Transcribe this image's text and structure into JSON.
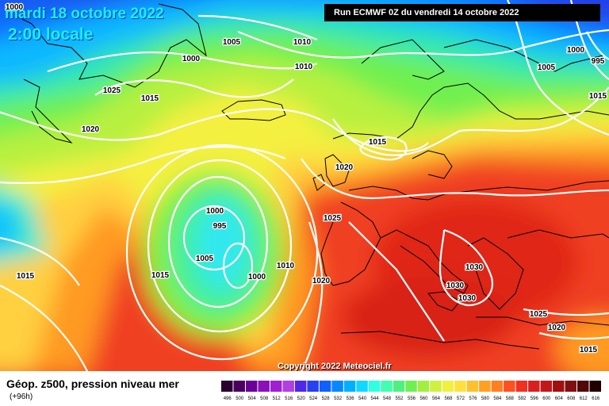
{
  "header": {
    "date_line": "mardi 18 octobre 2022",
    "time_line": "2:00 locale",
    "run_info": "Run ECMWF 0Z du vendredi 14 octobre 2022"
  },
  "footer": {
    "copyright": "Copyright 2022 Meteociel.fr",
    "legend_title": "Géop. z500, pression niveau mer",
    "legend_sub": "(+96h)"
  },
  "scale": {
    "labels": [
      "496",
      "500",
      "504",
      "508",
      "512",
      "516",
      "520",
      "524",
      "528",
      "532",
      "536",
      "540",
      "544",
      "548",
      "552",
      "556",
      "560",
      "564",
      "568",
      "572",
      "576",
      "580",
      "584",
      "588",
      "592",
      "596",
      "600",
      "604",
      "608",
      "612",
      "616"
    ],
    "colors": [
      "#2a0030",
      "#4a0060",
      "#6a0096",
      "#8a10b8",
      "#a020d0",
      "#b040e0",
      "#5028e8",
      "#2840f0",
      "#1060ff",
      "#0888ff",
      "#00b0ff",
      "#10d8ff",
      "#30ffe0",
      "#40ffb0",
      "#50f080",
      "#70f050",
      "#a0f040",
      "#d0f040",
      "#f0f040",
      "#ffe040",
      "#ffc030",
      "#ffa020",
      "#ff8020",
      "#ff5020",
      "#f03020",
      "#d82020",
      "#c01818",
      "#a01010",
      "#801010",
      "#500808",
      "#200000"
    ]
  },
  "pressure_labels": [
    {
      "text": "1000"
    },
    {
      "text": "1005"
    },
    {
      "text": "1010"
    },
    {
      "text": "1000"
    },
    {
      "text": "995"
    },
    {
      "text": "1000"
    },
    {
      "text": "1010"
    },
    {
      "text": "1005"
    },
    {
      "text": "1015"
    },
    {
      "text": "1025"
    },
    {
      "text": "1015"
    },
    {
      "text": "1020"
    },
    {
      "text": "1015"
    },
    {
      "text": "1020"
    },
    {
      "text": "1000"
    },
    {
      "text": "995"
    },
    {
      "text": "1005"
    },
    {
      "text": "1015"
    },
    {
      "text": "1010"
    },
    {
      "text": "1000"
    },
    {
      "text": "1020"
    },
    {
      "text": "1025"
    },
    {
      "text": "1015"
    },
    {
      "text": "1030"
    },
    {
      "text": "1030"
    },
    {
      "text": "1030"
    },
    {
      "text": "1025"
    },
    {
      "text": "1020"
    },
    {
      "text": "1015"
    }
  ]
}
